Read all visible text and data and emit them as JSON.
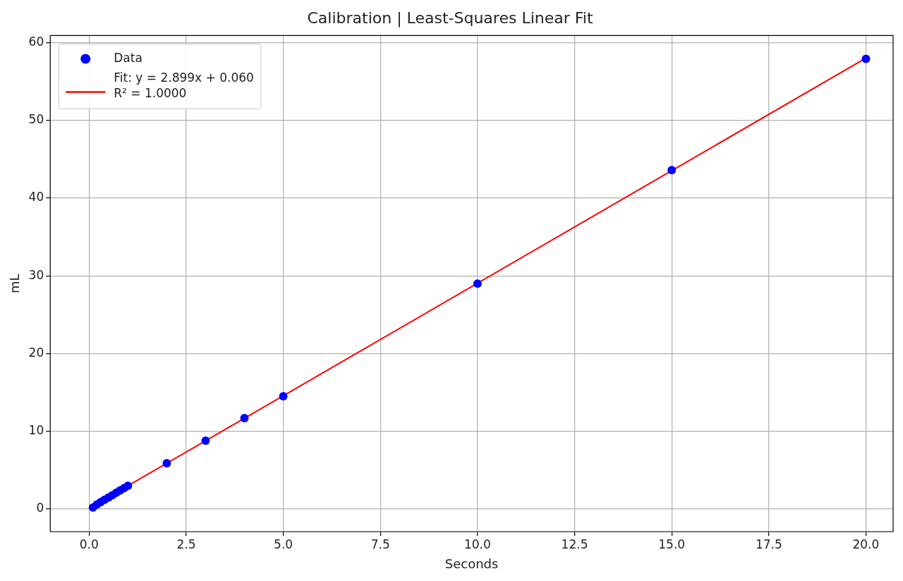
{
  "chart_data": {
    "type": "scatter",
    "title": "Calibration | Least-Squares Linear Fit",
    "xlabel": "Seconds",
    "ylabel": "mL",
    "series": [
      {
        "name": "Data",
        "color": "#0000ff",
        "marker": "circle",
        "x": [
          0.1,
          0.2,
          0.3,
          0.4,
          0.5,
          0.6,
          0.7,
          0.8,
          0.9,
          1.0,
          2,
          3,
          4,
          5,
          10,
          15,
          20
        ],
        "values": [
          0.2,
          0.6,
          0.9,
          1.2,
          1.5,
          1.8,
          2.1,
          2.4,
          2.7,
          3.0,
          5.9,
          8.8,
          11.7,
          14.5,
          29.0,
          43.6,
          57.9
        ]
      },
      {
        "name": "Fit: y = 2.899x + 0.060\nR² = 1.0000",
        "type": "line",
        "color": "#ff0000",
        "marker": "none",
        "line_style": "solid",
        "x": [
          0,
          20
        ],
        "values": [
          0.1,
          58.0
        ]
      }
    ],
    "xlim": [
      -1,
      20.7
    ],
    "ylim": [
      -2.9,
      60.9
    ],
    "xticks": [
      {
        "value": 0,
        "label": "0.0"
      },
      {
        "value": 2.5,
        "label": "2.5"
      },
      {
        "value": 5,
        "label": "5.0"
      },
      {
        "value": 7.5,
        "label": "7.5"
      },
      {
        "value": 10,
        "label": "10.0"
      },
      {
        "value": 12.5,
        "label": "12.5"
      },
      {
        "value": 15,
        "label": "15.0"
      },
      {
        "value": 17.5,
        "label": "17.5"
      },
      {
        "value": 20,
        "label": "20.0"
      }
    ],
    "yticks": [
      0,
      10,
      20,
      30,
      40,
      50,
      60
    ],
    "grid": true,
    "legend": "top left"
  }
}
